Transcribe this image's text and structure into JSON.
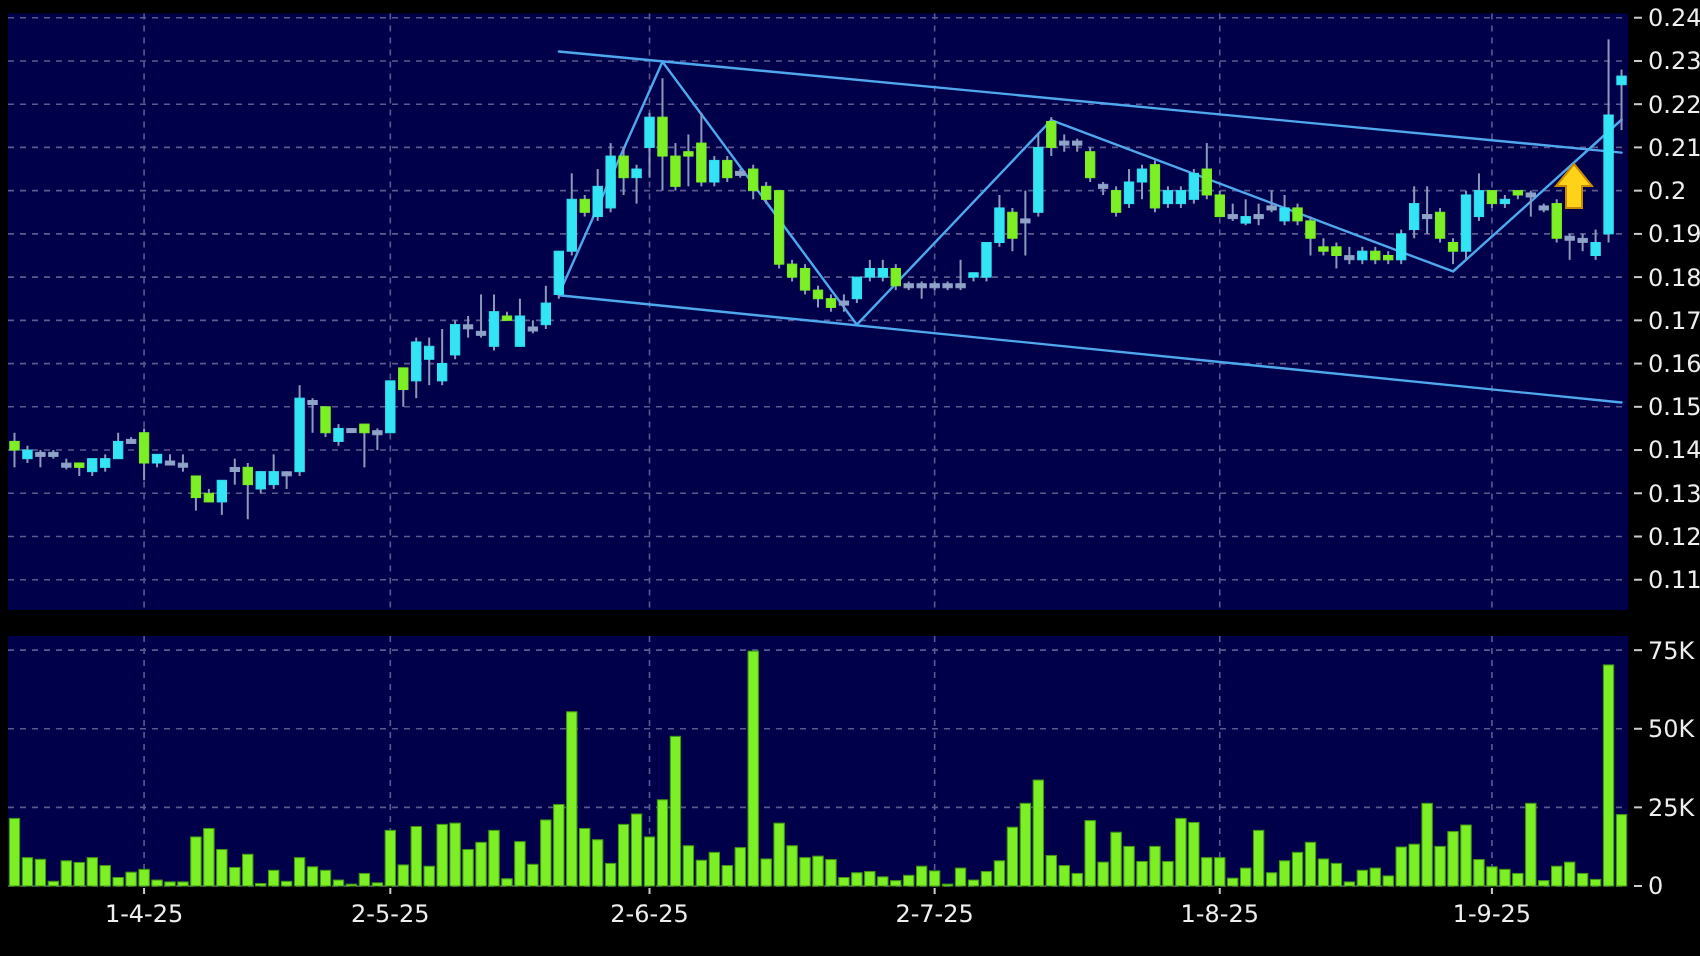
{
  "chart_data": [
    {
      "type": "candlestick",
      "categories": [
        null,
        null,
        null,
        null,
        null,
        null,
        null,
        null,
        null,
        null,
        null,
        null,
        null,
        null,
        null,
        null,
        null,
        null,
        null,
        null,
        null,
        null,
        null,
        null,
        null,
        null,
        null,
        null,
        null,
        null,
        null,
        null,
        null,
        null,
        null,
        null,
        null,
        null,
        null,
        null,
        null,
        null,
        null,
        null,
        null,
        null,
        null,
        null,
        null,
        null,
        null,
        null,
        null,
        null,
        null,
        null,
        null,
        null,
        null,
        null,
        null,
        null,
        null,
        null,
        null,
        null,
        null,
        null,
        null,
        null,
        null,
        null,
        null,
        null,
        null,
        null,
        null,
        null,
        null,
        null,
        null,
        null,
        null,
        null,
        null,
        null,
        null,
        null,
        null,
        null,
        null,
        null,
        null,
        null,
        null,
        null,
        null,
        null,
        null,
        null,
        null,
        null,
        null,
        null,
        null,
        null,
        null,
        null,
        null,
        null,
        null,
        null,
        null,
        null,
        null,
        null,
        null,
        null,
        null,
        null,
        null,
        null,
        null,
        null,
        null
      ],
      "ohlc": [
        [
          0.142,
          0.144,
          0.136,
          0.14
        ],
        [
          0.138,
          0.141,
          0.137,
          0.14
        ],
        [
          0.139,
          0.14,
          0.136,
          0.139
        ],
        [
          0.139,
          0.14,
          0.138,
          0.139
        ],
        [
          0.1365,
          0.138,
          0.1355,
          0.1365
        ],
        [
          0.137,
          0.137,
          0.134,
          0.136
        ],
        [
          0.135,
          0.138,
          0.134,
          0.138
        ],
        [
          0.136,
          0.139,
          0.135,
          0.138
        ],
        [
          0.138,
          0.144,
          0.138,
          0.142
        ],
        [
          0.142,
          0.143,
          0.142,
          0.142
        ],
        [
          0.144,
          0.145,
          0.133,
          0.137
        ],
        [
          0.137,
          0.139,
          0.136,
          0.139
        ],
        [
          0.137,
          0.139,
          0.137,
          0.137
        ],
        [
          0.1365,
          0.139,
          0.135,
          0.1365
        ],
        [
          0.134,
          0.134,
          0.126,
          0.129
        ],
        [
          0.13,
          0.131,
          0.128,
          0.128
        ],
        [
          0.128,
          0.133,
          0.125,
          0.133
        ],
        [
          0.1355,
          0.138,
          0.132,
          0.1355
        ],
        [
          0.136,
          0.137,
          0.124,
          0.132
        ],
        [
          0.131,
          0.135,
          0.13,
          0.135
        ],
        [
          0.132,
          0.139,
          0.131,
          0.135
        ],
        [
          0.1345,
          0.135,
          0.131,
          0.1345
        ],
        [
          0.135,
          0.155,
          0.134,
          0.152
        ],
        [
          0.151,
          0.152,
          0.144,
          0.151
        ],
        [
          0.15,
          0.15,
          0.143,
          0.144
        ],
        [
          0.142,
          0.146,
          0.141,
          0.145
        ],
        [
          0.1445,
          0.145,
          0.144,
          0.1445
        ],
        [
          0.146,
          0.146,
          0.136,
          0.144
        ],
        [
          0.144,
          0.145,
          0.14,
          0.144
        ],
        [
          0.144,
          0.156,
          0.144,
          0.156
        ],
        [
          0.159,
          0.159,
          0.15,
          0.154
        ],
        [
          0.156,
          0.166,
          0.152,
          0.165
        ],
        [
          0.161,
          0.166,
          0.155,
          0.164
        ],
        [
          0.156,
          0.168,
          0.155,
          0.16
        ],
        [
          0.162,
          0.17,
          0.161,
          0.169
        ],
        [
          0.1685,
          0.171,
          0.166,
          0.1685
        ],
        [
          0.167,
          0.176,
          0.166,
          0.167
        ],
        [
          0.164,
          0.176,
          0.163,
          0.172
        ],
        [
          0.171,
          0.172,
          0.17,
          0.17
        ],
        [
          0.164,
          0.175,
          0.164,
          0.171
        ],
        [
          0.168,
          0.17,
          0.167,
          0.168
        ],
        [
          0.169,
          0.178,
          0.168,
          0.174
        ],
        [
          0.176,
          0.186,
          0.175,
          0.186
        ],
        [
          0.186,
          0.204,
          0.185,
          0.198
        ],
        [
          0.198,
          0.199,
          0.194,
          0.195
        ],
        [
          0.194,
          0.205,
          0.193,
          0.201
        ],
        [
          0.196,
          0.211,
          0.195,
          0.208
        ],
        [
          0.208,
          0.21,
          0.199,
          0.203
        ],
        [
          0.203,
          0.206,
          0.197,
          0.205
        ],
        [
          0.21,
          0.218,
          0.203,
          0.217
        ],
        [
          0.217,
          0.226,
          0.2,
          0.208
        ],
        [
          0.208,
          0.211,
          0.2,
          0.201
        ],
        [
          0.209,
          0.213,
          0.201,
          0.208
        ],
        [
          0.211,
          0.218,
          0.201,
          0.202
        ],
        [
          0.202,
          0.208,
          0.201,
          0.207
        ],
        [
          0.207,
          0.208,
          0.202,
          0.203
        ],
        [
          0.204,
          0.205,
          0.203,
          0.204
        ],
        [
          0.205,
          0.206,
          0.198,
          0.2
        ],
        [
          0.201,
          0.202,
          0.197,
          0.198
        ],
        [
          0.2,
          0.2,
          0.182,
          0.183
        ],
        [
          0.183,
          0.184,
          0.179,
          0.18
        ],
        [
          0.182,
          0.183,
          0.176,
          0.177
        ],
        [
          0.177,
          0.178,
          0.173,
          0.175
        ],
        [
          0.175,
          0.176,
          0.172,
          0.173
        ],
        [
          0.174,
          0.176,
          0.172,
          0.174
        ],
        [
          0.175,
          0.18,
          0.174,
          0.18
        ],
        [
          0.18,
          0.184,
          0.179,
          0.182
        ],
        [
          0.18,
          0.184,
          0.179,
          0.182
        ],
        [
          0.182,
          0.183,
          0.177,
          0.178
        ],
        [
          0.178,
          0.179,
          0.177,
          0.178
        ],
        [
          0.178,
          0.179,
          0.175,
          0.178
        ],
        [
          0.178,
          0.179,
          0.177,
          0.178
        ],
        [
          0.178,
          0.179,
          0.177,
          0.178
        ],
        [
          0.178,
          0.184,
          0.177,
          0.178
        ],
        [
          0.18,
          0.181,
          0.179,
          0.181
        ],
        [
          0.18,
          0.188,
          0.179,
          0.188
        ],
        [
          0.188,
          0.199,
          0.187,
          0.196
        ],
        [
          0.195,
          0.196,
          0.186,
          0.189
        ],
        [
          0.193,
          0.2,
          0.185,
          0.193
        ],
        [
          0.195,
          0.213,
          0.194,
          0.21
        ],
        [
          0.216,
          0.217,
          0.208,
          0.21
        ],
        [
          0.211,
          0.213,
          0.209,
          0.211
        ],
        [
          0.211,
          0.212,
          0.209,
          0.211
        ],
        [
          0.209,
          0.21,
          0.202,
          0.203
        ],
        [
          0.201,
          0.202,
          0.199,
          0.201
        ],
        [
          0.2,
          0.201,
          0.194,
          0.195
        ],
        [
          0.197,
          0.205,
          0.196,
          0.202
        ],
        [
          0.202,
          0.206,
          0.198,
          0.205
        ],
        [
          0.206,
          0.207,
          0.195,
          0.196
        ],
        [
          0.197,
          0.201,
          0.196,
          0.2
        ],
        [
          0.197,
          0.201,
          0.196,
          0.2
        ],
        [
          0.198,
          0.205,
          0.197,
          0.204
        ],
        [
          0.205,
          0.211,
          0.198,
          0.199
        ],
        [
          0.199,
          0.2,
          0.194,
          0.194
        ],
        [
          0.194,
          0.197,
          0.193,
          0.194
        ],
        [
          0.1925,
          0.198,
          0.192,
          0.194
        ],
        [
          0.194,
          0.197,
          0.192,
          0.194
        ],
        [
          0.196,
          0.2,
          0.195,
          0.196
        ],
        [
          0.193,
          0.199,
          0.192,
          0.196
        ],
        [
          0.196,
          0.197,
          0.192,
          0.193
        ],
        [
          0.193,
          0.194,
          0.185,
          0.189
        ],
        [
          0.187,
          0.189,
          0.185,
          0.186
        ],
        [
          0.187,
          0.188,
          0.182,
          0.185
        ],
        [
          0.1845,
          0.187,
          0.183,
          0.1845
        ],
        [
          0.184,
          0.187,
          0.183,
          0.186
        ],
        [
          0.186,
          0.187,
          0.183,
          0.184
        ],
        [
          0.185,
          0.186,
          0.183,
          0.184
        ],
        [
          0.184,
          0.191,
          0.183,
          0.19
        ],
        [
          0.191,
          0.201,
          0.189,
          0.197
        ],
        [
          0.194,
          0.201,
          0.19,
          0.194
        ],
        [
          0.195,
          0.196,
          0.188,
          0.189
        ],
        [
          0.188,
          0.189,
          0.183,
          0.186
        ],
        [
          0.186,
          0.2,
          0.184,
          0.199
        ],
        [
          0.194,
          0.204,
          0.193,
          0.2
        ],
        [
          0.2,
          0.2,
          0.196,
          0.197
        ],
        [
          0.197,
          0.199,
          0.196,
          0.198
        ],
        [
          0.2,
          0.2,
          0.198,
          0.199
        ],
        [
          0.199,
          0.2,
          0.194,
          0.199
        ],
        [
          0.196,
          0.197,
          0.195,
          0.196
        ],
        [
          0.197,
          0.198,
          0.188,
          0.189
        ],
        [
          0.189,
          0.19,
          0.184,
          0.189
        ],
        [
          0.1885,
          0.19,
          0.186,
          0.1885
        ],
        [
          0.185,
          0.191,
          0.184,
          0.188
        ],
        [
          0.19,
          0.235,
          0.188,
          0.2175
        ],
        [
          0.2245,
          0.228,
          0.214,
          0.2265
        ]
      ],
      "colors": [
        "#7cf024",
        "#33e4f4",
        "#8fa3c8",
        "#8fa3c8",
        "#8fa3c8",
        "#7cf024",
        "#33e4f4",
        "#33e4f4",
        "#33e4f4",
        "#8fa3c8",
        "#7cf024",
        "#33e4f4",
        "#8fa3c8",
        "#8fa3c8",
        "#7cf024",
        "#7cf024",
        "#33e4f4",
        "#8fa3c8",
        "#7cf024",
        "#33e4f4",
        "#33e4f4",
        "#8fa3c8",
        "#33e4f4",
        "#8fa3c8",
        "#7cf024",
        "#33e4f4",
        "#8fa3c8",
        "#7cf024",
        "#8fa3c8",
        "#33e4f4",
        "#7cf024",
        "#33e4f4",
        "#33e4f4",
        "#33e4f4",
        "#33e4f4",
        "#8fa3c8",
        "#8fa3c8",
        "#33e4f4",
        "#7cf024",
        "#33e4f4",
        "#8fa3c8",
        "#33e4f4",
        "#33e4f4",
        "#33e4f4",
        "#7cf024",
        "#33e4f4",
        "#33e4f4",
        "#7cf024",
        "#33e4f4",
        "#33e4f4",
        "#7cf024",
        "#7cf024",
        "#7cf024",
        "#7cf024",
        "#33e4f4",
        "#7cf024",
        "#8fa3c8",
        "#7cf024",
        "#7cf024",
        "#7cf024",
        "#7cf024",
        "#7cf024",
        "#7cf024",
        "#7cf024",
        "#8fa3c8",
        "#33e4f4",
        "#33e4f4",
        "#33e4f4",
        "#7cf024",
        "#8fa3c8",
        "#8fa3c8",
        "#8fa3c8",
        "#8fa3c8",
        "#8fa3c8",
        "#33e4f4",
        "#33e4f4",
        "#33e4f4",
        "#7cf024",
        "#8fa3c8",
        "#33e4f4",
        "#7cf024",
        "#8fa3c8",
        "#8fa3c8",
        "#7cf024",
        "#8fa3c8",
        "#7cf024",
        "#33e4f4",
        "#33e4f4",
        "#7cf024",
        "#33e4f4",
        "#33e4f4",
        "#33e4f4",
        "#7cf024",
        "#7cf024",
        "#8fa3c8",
        "#33e4f4",
        "#8fa3c8",
        "#8fa3c8",
        "#33e4f4",
        "#7cf024",
        "#7cf024",
        "#7cf024",
        "#7cf024",
        "#8fa3c8",
        "#33e4f4",
        "#7cf024",
        "#7cf024",
        "#33e4f4",
        "#33e4f4",
        "#8fa3c8",
        "#7cf024",
        "#7cf024",
        "#33e4f4",
        "#33e4f4",
        "#7cf024",
        "#33e4f4",
        "#7cf024",
        "#8fa3c8",
        "#8fa3c8",
        "#7cf024",
        "#8fa3c8",
        "#8fa3c8",
        "#33e4f4",
        "#33e4f4",
        "#33e4f4"
      ],
      "series": [
        {
          "type": "line",
          "values": [
            null,
            null,
            null,
            null,
            null,
            null,
            null,
            null,
            null,
            null,
            null,
            null,
            null,
            null,
            null,
            null,
            null,
            null,
            null,
            null,
            null,
            null,
            null,
            null,
            null,
            null,
            null,
            null,
            null,
            null,
            null,
            null,
            null,
            null,
            null,
            null,
            null,
            null,
            null,
            null,
            null,
            null,
            0.2322,
            null,
            null,
            null,
            null,
            null,
            null,
            null,
            null,
            null,
            null,
            null,
            null,
            null,
            null,
            null,
            null,
            null,
            null,
            null,
            null,
            null,
            null,
            null,
            null,
            null,
            null,
            null,
            null,
            null,
            null,
            null,
            null,
            null,
            null,
            null,
            null,
            null,
            null,
            null,
            null,
            null,
            null,
            null,
            null,
            null,
            null,
            null,
            null,
            null,
            null,
            null,
            null,
            null,
            null,
            null,
            null,
            null,
            null,
            null,
            null,
            null,
            null,
            null,
            null,
            null,
            null,
            null,
            null,
            null,
            null,
            null,
            null,
            null,
            null,
            null,
            null,
            null,
            null,
            null,
            null,
            null,
            0.2088
          ],
          "color": "#4fa8ee"
        },
        {
          "type": "line",
          "values": [
            null,
            null,
            null,
            null,
            null,
            null,
            null,
            null,
            null,
            null,
            null,
            null,
            null,
            null,
            null,
            null,
            null,
            null,
            null,
            null,
            null,
            null,
            null,
            null,
            null,
            null,
            null,
            null,
            null,
            null,
            null,
            null,
            null,
            null,
            null,
            null,
            null,
            null,
            null,
            null,
            null,
            null,
            0.1758,
            null,
            null,
            null,
            null,
            null,
            null,
            null,
            null,
            null,
            null,
            null,
            null,
            null,
            null,
            null,
            null,
            null,
            null,
            null,
            null,
            null,
            null,
            null,
            null,
            null,
            null,
            null,
            null,
            null,
            null,
            null,
            null,
            null,
            null,
            null,
            null,
            null,
            null,
            null,
            null,
            null,
            null,
            null,
            null,
            null,
            null,
            null,
            null,
            null,
            null,
            null,
            null,
            null,
            null,
            null,
            null,
            null,
            null,
            null,
            null,
            null,
            null,
            null,
            null,
            null,
            null,
            null,
            null,
            null,
            null,
            null,
            null,
            null,
            null,
            null,
            null,
            null,
            null,
            null,
            null,
            null,
            0.151
          ],
          "color": "#4fa8ee"
        },
        {
          "type": "line",
          "values": [
            null,
            null,
            null,
            null,
            null,
            null,
            null,
            null,
            null,
            null,
            null,
            null,
            null,
            null,
            null,
            null,
            null,
            null,
            null,
            null,
            null,
            null,
            null,
            null,
            null,
            null,
            null,
            null,
            null,
            null,
            null,
            null,
            null,
            null,
            null,
            null,
            null,
            null,
            null,
            null,
            null,
            null,
            0.176,
            null,
            null,
            null,
            null,
            null,
            null,
            null,
            0.2298,
            null,
            null,
            null,
            null,
            null,
            null,
            null,
            null,
            null,
            null,
            null,
            null,
            null,
            null,
            0.169,
            null,
            null,
            null,
            null,
            null,
            null,
            null,
            null,
            null,
            null,
            null,
            null,
            null,
            null,
            0.2163,
            null,
            null,
            null,
            null,
            null,
            null,
            null,
            null,
            null,
            null,
            null,
            null,
            null,
            null,
            null,
            null,
            null,
            null,
            null,
            null,
            null,
            null,
            null,
            null,
            null,
            null,
            null,
            null,
            null,
            null,
            0.1813,
            null,
            null,
            null,
            null,
            null,
            null,
            null,
            null,
            null,
            null,
            null,
            null,
            0.2164
          ],
          "color": "#4fa8ee"
        }
      ],
      "ylim": [
        0.103,
        0.241
      ],
      "yticks": [
        0.24,
        0.23,
        0.22,
        0.21,
        0.2,
        0.19,
        0.18,
        0.17,
        0.16,
        0.15,
        0.14,
        0.13,
        0.12,
        0.11
      ],
      "grid": true,
      "tick_labels": "y"
    },
    {
      "type": "bar",
      "categories": [
        null,
        null,
        null,
        null,
        null,
        null,
        null,
        null,
        null,
        null,
        "1-4-25",
        null,
        null,
        null,
        null,
        null,
        null,
        null,
        null,
        null,
        null,
        null,
        null,
        null,
        null,
        null,
        null,
        null,
        null,
        "2-5-25",
        null,
        null,
        null,
        null,
        null,
        null,
        null,
        null,
        null,
        null,
        null,
        null,
        null,
        null,
        null,
        null,
        null,
        null,
        null,
        "2-6-25",
        null,
        null,
        null,
        null,
        null,
        null,
        null,
        null,
        null,
        null,
        null,
        null,
        null,
        null,
        null,
        null,
        null,
        null,
        null,
        null,
        null,
        "2-7-25",
        null,
        null,
        null,
        null,
        null,
        null,
        null,
        null,
        null,
        null,
        null,
        null,
        null,
        null,
        null,
        null,
        null,
        null,
        null,
        null,
        null,
        "1-8-25",
        null,
        null,
        null,
        null,
        null,
        null,
        null,
        null,
        null,
        null,
        null,
        null,
        null,
        null,
        null,
        null,
        null,
        null,
        null,
        null,
        "1-9-25",
        null,
        null,
        null,
        null,
        null,
        null,
        null,
        null,
        null,
        null
      ],
      "values": [
        21500,
        9000,
        8500,
        1500,
        8000,
        7500,
        9000,
        6500,
        2700,
        4400,
        5300,
        1900,
        1300,
        1300,
        15600,
        18300,
        11600,
        5900,
        10100,
        800,
        5000,
        1500,
        9000,
        6100,
        5000,
        1900,
        600,
        4000,
        1000,
        17700,
        6700,
        18900,
        6300,
        19600,
        20000,
        11600,
        13900,
        17700,
        2300,
        14100,
        6900,
        21000,
        25900,
        55400,
        18300,
        14700,
        7200,
        19600,
        22900,
        15600,
        27400,
        47600,
        12800,
        8200,
        10700,
        6500,
        12200,
        74700,
        8600,
        20000,
        12800,
        9000,
        9500,
        8400,
        2700,
        4200,
        4600,
        2900,
        1700,
        3400,
        6300,
        4800,
        600,
        5700,
        1900,
        4600,
        8000,
        18700,
        26300,
        33700,
        9700,
        6500,
        4000,
        20800,
        7600,
        17100,
        12600,
        7800,
        12600,
        7800,
        21500,
        20200,
        9000,
        9000,
        2500,
        5700,
        17700,
        4200,
        8000,
        10700,
        13900,
        8600,
        7200,
        1300,
        5000,
        5700,
        3200,
        12400,
        13300,
        26300,
        12600,
        17300,
        19400,
        8400,
        6100,
        5300,
        4000,
        26300,
        1700,
        6300,
        7600,
        4000,
        2100,
        70300,
        22700
      ],
      "color": "#7cf024",
      "ylim": [
        0,
        79500
      ],
      "yticks": [
        {
          "value": 75000,
          "label": "75K"
        },
        {
          "value": 50000,
          "label": "50K"
        },
        {
          "value": 25000,
          "label": "25K"
        },
        0
      ],
      "grid": true
    }
  ]
}
